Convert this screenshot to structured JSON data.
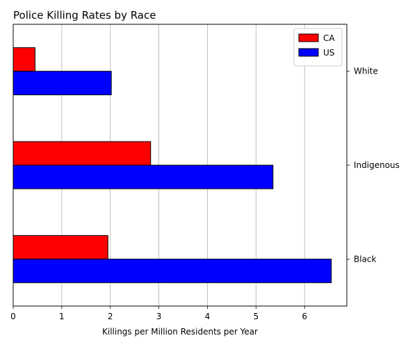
{
  "chart_data": {
    "type": "bar",
    "orientation": "horizontal",
    "title": "Police Killing Rates by Race",
    "xlabel": "Killings per Million Residents per Year",
    "ylabel": "",
    "categories": [
      "White",
      "Indigenous",
      "Black"
    ],
    "series": [
      {
        "name": "CA",
        "color": "#ff0000",
        "values": [
          0.45,
          2.83,
          1.95
        ]
      },
      {
        "name": "US",
        "color": "#0000ff",
        "values": [
          2.02,
          5.35,
          6.55
        ]
      }
    ],
    "xlim": [
      0,
      6.87
    ],
    "xticks": [
      0,
      1,
      2,
      3,
      4,
      5,
      6
    ],
    "grid": "x",
    "legend_position": "top-right",
    "y_tick_side": "right"
  }
}
